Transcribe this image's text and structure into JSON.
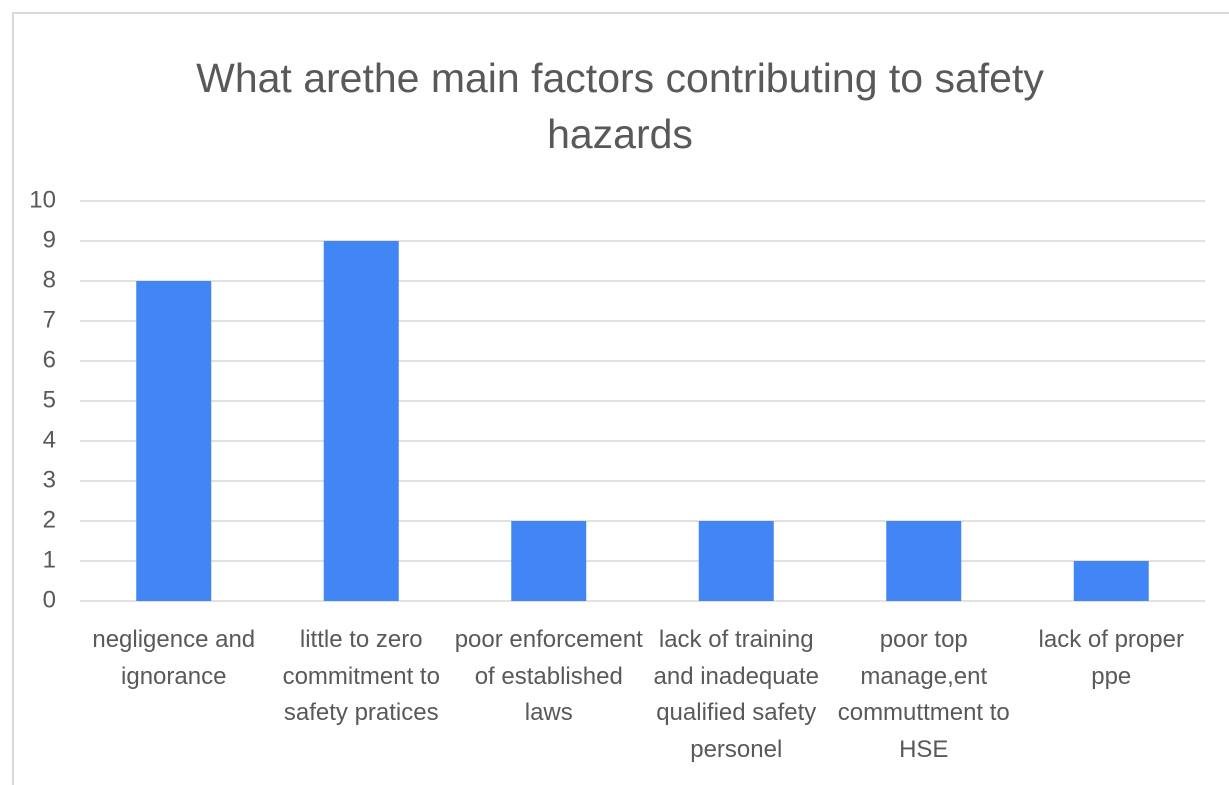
{
  "chart_data": {
    "type": "bar",
    "title": "What arethe main factors contributing to safety hazards",
    "categories": [
      "negligence and ignorance",
      "little to zero commitment to safety pratices",
      "poor enforcement of established laws",
      "lack of training and inadequate qualified safety personel",
      "poor top manage,ent commuttment to HSE",
      "lack of proper ppe"
    ],
    "values": [
      8,
      9,
      2,
      2,
      2,
      1
    ],
    "color": "#4285f4",
    "ylim": [
      0,
      10
    ],
    "yticks": [
      0,
      1,
      2,
      3,
      4,
      5,
      6,
      7,
      8,
      9,
      10
    ],
    "grid": true
  }
}
